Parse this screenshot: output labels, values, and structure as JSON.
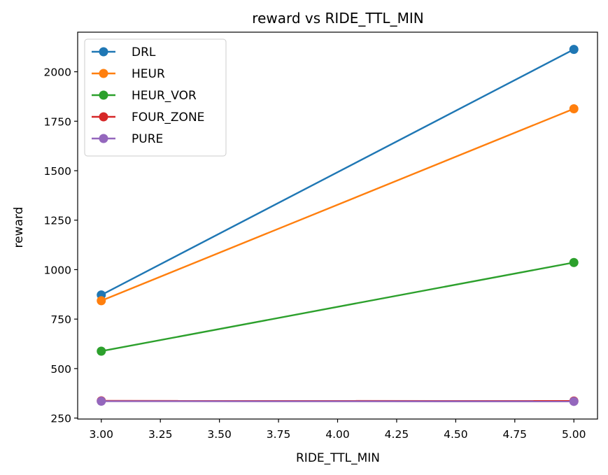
{
  "chart_data": {
    "type": "line",
    "title": "reward vs RIDE_TTL_MIN",
    "xlabel": "RIDE_TTL_MIN",
    "ylabel": "reward",
    "x": [
      3.0,
      5.0
    ],
    "xlim": [
      2.9,
      5.1
    ],
    "ylim": [
      245,
      2200
    ],
    "xticks": [
      "3.00",
      "3.25",
      "3.50",
      "3.75",
      "4.00",
      "4.25",
      "4.50",
      "4.75",
      "5.00"
    ],
    "xtick_values": [
      3.0,
      3.25,
      3.5,
      3.75,
      4.0,
      4.25,
      4.5,
      4.75,
      5.0
    ],
    "yticks": [
      "250",
      "500",
      "750",
      "1000",
      "1250",
      "1500",
      "1750",
      "2000"
    ],
    "ytick_values": [
      250,
      500,
      750,
      1000,
      1250,
      1500,
      1750,
      2000
    ],
    "grid": false,
    "legend": "top-left",
    "series": [
      {
        "name": "DRL",
        "values": [
          872,
          2113
        ],
        "color": "#1f77b4"
      },
      {
        "name": "HEUR",
        "values": [
          843,
          1813
        ],
        "color": "#ff7f0e"
      },
      {
        "name": "HEUR_VOR",
        "values": [
          588,
          1036
        ],
        "color": "#2ca02c"
      },
      {
        "name": "FOUR_ZONE",
        "values": [
          337,
          336
        ],
        "color": "#d62728"
      },
      {
        "name": "PURE",
        "values": [
          335,
          334
        ],
        "color": "#9467bd"
      }
    ]
  }
}
